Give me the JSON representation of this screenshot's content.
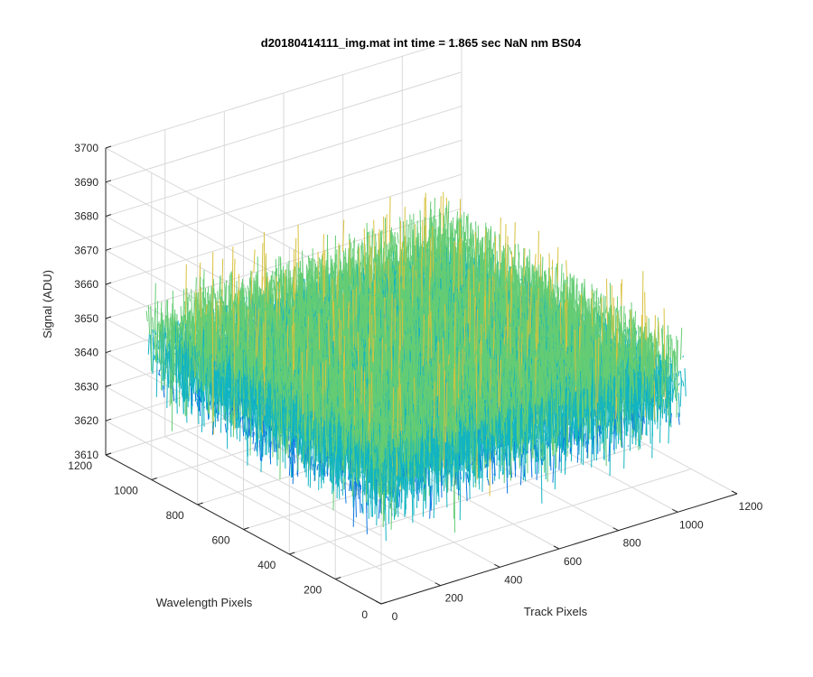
{
  "figure": {
    "background": "#ffffff",
    "axis_color": "#262626",
    "grid_color": "#d9d9d9"
  },
  "chart_data": {
    "type": "surface",
    "title": "d20180414111_img.mat int time = 1.865 sec  NaN nm BS04",
    "xlabel": "Track Pixels",
    "ylabel": "Wavelength Pixels",
    "zlabel": "Signal (ADU)",
    "xlim": [
      0,
      1200
    ],
    "ylim": [
      0,
      1200
    ],
    "zlim": [
      3610,
      3700
    ],
    "x_ticks": [
      0,
      200,
      400,
      600,
      800,
      1000,
      1200
    ],
    "y_ticks": [
      0,
      200,
      400,
      600,
      800,
      1000,
      1200
    ],
    "z_ticks": [
      3610,
      3620,
      3630,
      3640,
      3650,
      3660,
      3670,
      3680,
      3690,
      3700
    ],
    "grid": true,
    "colormap": "parula",
    "colormap_colors": [
      "#3e26a8",
      "#0b75e1",
      "#12b4c2",
      "#64cc74",
      "#d8c13c",
      "#f6e71f"
    ],
    "data_extent": {
      "x": [
        1,
        1024
      ],
      "y": [
        1,
        1024
      ]
    },
    "noise_model": {
      "mean": 3648,
      "std": 10,
      "min": 3620,
      "max": 3690
    }
  }
}
